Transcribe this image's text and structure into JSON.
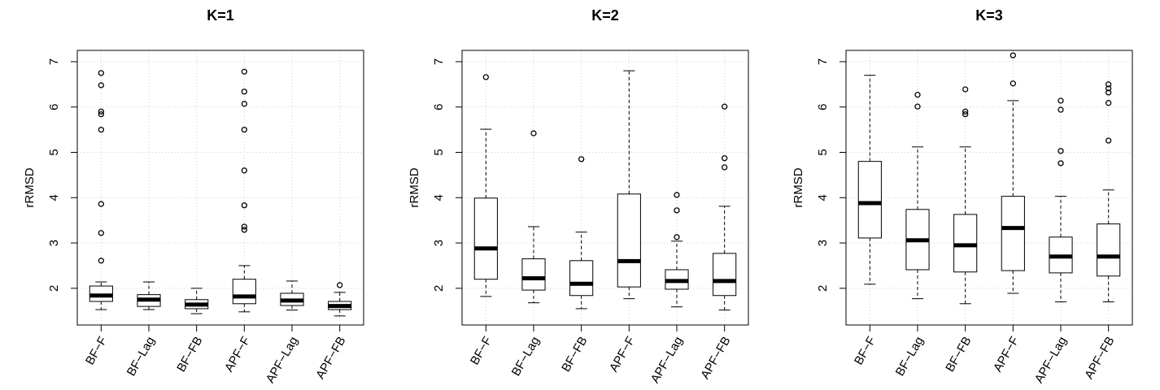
{
  "chart_data": [
    {
      "type": "boxplot",
      "title": "K=1",
      "y_label": "rRMSD",
      "grid": true,
      "categories": [
        "BF−F",
        "BF−Lag",
        "BF−FB",
        "APF−F",
        "APF−Lag",
        "APF−FB"
      ],
      "ylim": [
        1.19,
        7.25
      ],
      "yticks": [
        2,
        3,
        4,
        5,
        6,
        7
      ],
      "boxes": [
        {
          "whisker_low": 1.53,
          "q1": 1.71,
          "median": 1.84,
          "q3": 2.05,
          "whisker_high": 2.14,
          "outliers": [
            6.75,
            6.48,
            5.9,
            5.84,
            5.5,
            3.86,
            3.22,
            2.61
          ]
        },
        {
          "whisker_low": 1.53,
          "q1": 1.6,
          "median": 1.75,
          "q3": 1.86,
          "whisker_high": 2.14,
          "outliers": []
        },
        {
          "whisker_low": 1.44,
          "q1": 1.55,
          "median": 1.64,
          "q3": 1.75,
          "whisker_high": 2.0,
          "outliers": []
        },
        {
          "whisker_low": 1.48,
          "q1": 1.66,
          "median": 1.82,
          "q3": 2.2,
          "whisker_high": 2.5,
          "outliers": [
            6.78,
            6.34,
            6.07,
            5.5,
            4.6,
            3.83,
            3.36,
            3.29
          ]
        },
        {
          "whisker_low": 1.52,
          "q1": 1.62,
          "median": 1.73,
          "q3": 1.89,
          "whisker_high": 2.16,
          "outliers": []
        },
        {
          "whisker_low": 1.39,
          "q1": 1.53,
          "median": 1.61,
          "q3": 1.71,
          "whisker_high": 1.91,
          "outliers": [
            2.07
          ]
        }
      ]
    },
    {
      "type": "boxplot",
      "title": "K=2",
      "y_label": "rRMSD",
      "grid": true,
      "categories": [
        "BF−F",
        "BF−Lag",
        "BF−FB",
        "APF−F",
        "APF−Lag",
        "APF−FB"
      ],
      "ylim": [
        1.19,
        7.25
      ],
      "yticks": [
        2,
        3,
        4,
        5,
        6,
        7
      ],
      "boxes": [
        {
          "whisker_low": 1.82,
          "q1": 2.2,
          "median": 2.88,
          "q3": 3.99,
          "whisker_high": 5.51,
          "outliers": [
            6.66
          ]
        },
        {
          "whisker_low": 1.68,
          "q1": 1.96,
          "median": 2.22,
          "q3": 2.65,
          "whisker_high": 3.36,
          "outliers": [
            5.42
          ]
        },
        {
          "whisker_low": 1.55,
          "q1": 1.84,
          "median": 2.1,
          "q3": 2.61,
          "whisker_high": 3.24,
          "outliers": [
            4.85
          ]
        },
        {
          "whisker_low": 1.77,
          "q1": 2.03,
          "median": 2.6,
          "q3": 4.08,
          "whisker_high": 6.8,
          "outliers": []
        },
        {
          "whisker_low": 1.59,
          "q1": 1.98,
          "median": 2.16,
          "q3": 2.41,
          "whisker_high": 3.04,
          "outliers": [
            4.06,
            3.72,
            3.13
          ]
        },
        {
          "whisker_low": 1.52,
          "q1": 1.84,
          "median": 2.16,
          "q3": 2.77,
          "whisker_high": 3.81,
          "outliers": [
            6.01,
            4.87,
            4.67
          ]
        }
      ]
    },
    {
      "type": "boxplot",
      "title": "K=3",
      "y_label": "rRMSD",
      "grid": true,
      "categories": [
        "BF−F",
        "BF−Lag",
        "BF−FB",
        "APF−F",
        "APF−Lag",
        "APF−FB"
      ],
      "ylim": [
        1.19,
        7.25
      ],
      "yticks": [
        2,
        3,
        4,
        5,
        6,
        7
      ],
      "boxes": [
        {
          "whisker_low": 2.09,
          "q1": 3.11,
          "median": 3.88,
          "q3": 4.8,
          "whisker_high": 6.7,
          "outliers": []
        },
        {
          "whisker_low": 1.77,
          "q1": 2.41,
          "median": 3.06,
          "q3": 3.74,
          "whisker_high": 5.12,
          "outliers": [
            6.27,
            6.01
          ]
        },
        {
          "whisker_low": 1.66,
          "q1": 2.36,
          "median": 2.95,
          "q3": 3.63,
          "whisker_high": 5.12,
          "outliers": [
            6.39,
            5.9,
            5.84
          ]
        },
        {
          "whisker_low": 1.89,
          "q1": 2.39,
          "median": 3.33,
          "q3": 4.03,
          "whisker_high": 6.14,
          "outliers": [
            7.14,
            6.52
          ]
        },
        {
          "whisker_low": 1.7,
          "q1": 2.34,
          "median": 2.7,
          "q3": 3.13,
          "whisker_high": 4.03,
          "outliers": [
            6.14,
            5.94,
            5.03,
            4.76
          ]
        },
        {
          "whisker_low": 1.7,
          "q1": 2.27,
          "median": 2.7,
          "q3": 3.42,
          "whisker_high": 4.17,
          "outliers": [
            6.5,
            6.41,
            6.32,
            6.09,
            5.26
          ]
        }
      ]
    }
  ]
}
